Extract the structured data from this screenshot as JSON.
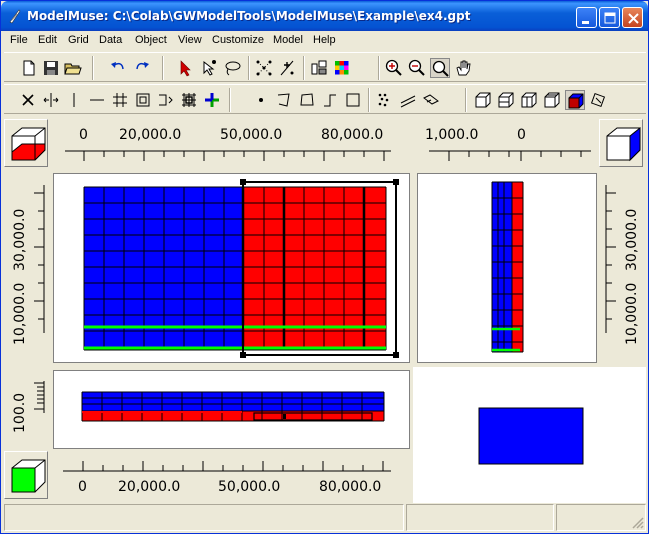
{
  "window": {
    "title": "ModelMuse: C:\\Colab\\GWModelTools\\ModelMuse\\Example\\ex4.gpt"
  },
  "menu": [
    "File",
    "Edit",
    "Grid",
    "Data",
    "Object",
    "View",
    "Customize",
    "Model",
    "Help"
  ],
  "toolbar1": {
    "icons": [
      "new-file-icon",
      "save-icon",
      "open-folder-icon",
      "undo-icon",
      "redo-icon",
      "select-arrow-icon",
      "select-point-icon",
      "lasso-select-icon",
      "grid-nodes-icon",
      "add-node-icon",
      "column-split-icon",
      "colored-grid-icon",
      "zoom-in-icon",
      "zoom-out-icon",
      "zoom-icon",
      "pan-hand-icon"
    ]
  },
  "toolbar2": {
    "icons": [
      "delete-gridline-icon",
      "move-gridline-icon",
      "add-gridline-icon",
      "horizontal-line-icon",
      "grid-icon",
      "subdivide-icon",
      "spacing-icon",
      "generate-grid-icon",
      "add-vertex-icon",
      "point-object-icon",
      "line-object-icon",
      "polygon-object-icon",
      "straight-line-icon",
      "rectangle-object-icon",
      "scatter-points-icon",
      "parallel-lines-icon",
      "diamond-icon",
      "cube-view-1-icon",
      "cube-view-2-icon",
      "cube-view-3-icon",
      "cube-view-4-icon",
      "colored-cube-icon",
      "rotate-icon"
    ]
  },
  "top_view": {
    "ruler_x_labels": [
      "0",
      "20,000.0",
      "50,000.0",
      "80,000.0"
    ],
    "ruler_y_labels": [
      "10,000.0",
      "30,000.0"
    ]
  },
  "side_view": {
    "ruler_x_labels": [
      "1,000.0",
      "0"
    ],
    "ruler_y_labels": [
      "10,000.0",
      "30,000.0"
    ]
  },
  "front_view": {
    "ruler_y_labels": [
      "100.0"
    ],
    "ruler_x_labels": [
      "0",
      "20,000.0",
      "50,000.0",
      "80,000.0"
    ]
  },
  "colors": {
    "blue_zone": "#0000ff",
    "red_zone": "#ff0000",
    "green_line": "#00ff00",
    "title_bar": "#0a5fd8"
  },
  "status": [
    "",
    "",
    ""
  ]
}
